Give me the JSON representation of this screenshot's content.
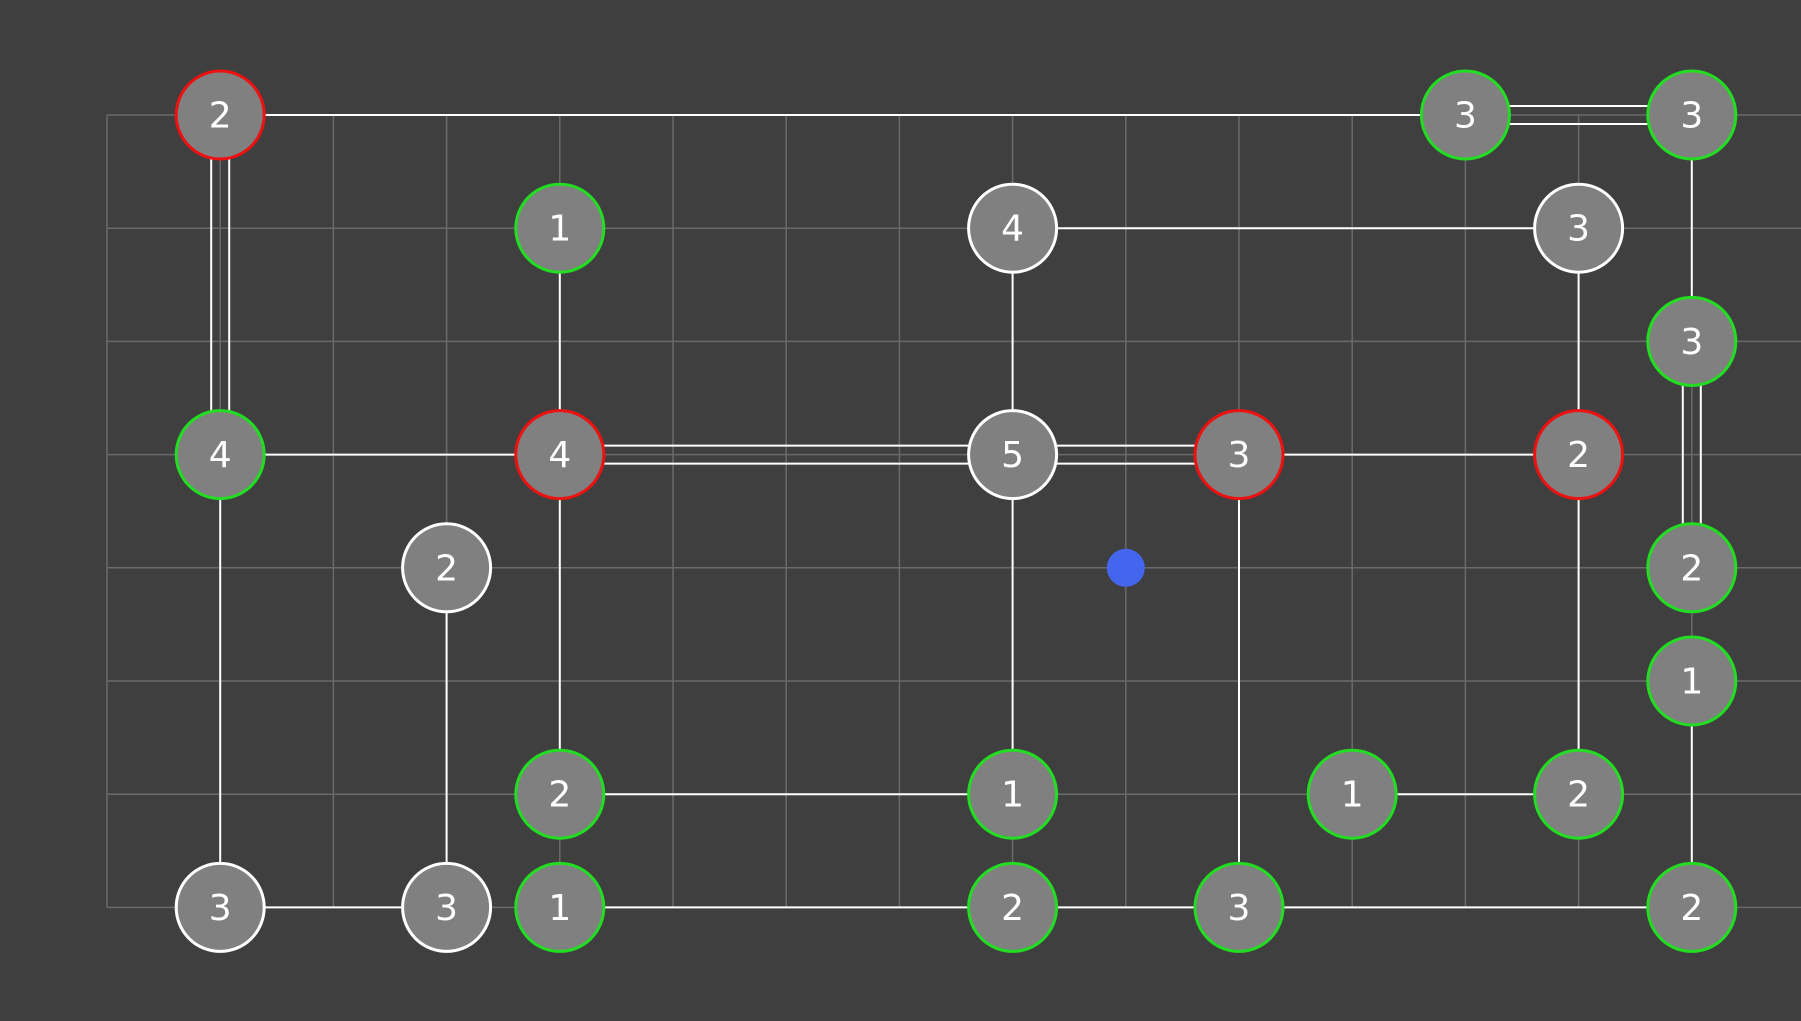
{
  "puzzle": {
    "grid": {
      "cols": 15,
      "rows": 8
    },
    "colors": {
      "background": "#3f3f3f",
      "grid": "#6a6a6a",
      "node_fill": "#808080",
      "bridge": "#ffffff",
      "complete": "#22dd22",
      "error": "#ee1111",
      "incomplete": "#ffffff",
      "cursor": "#4466ee"
    },
    "cursor": {
      "col": 9,
      "row": 4
    },
    "nodes": [
      {
        "id": "n1",
        "col": 1,
        "row": 0,
        "label": "2",
        "state": "error"
      },
      {
        "id": "n2",
        "col": 12,
        "row": 0,
        "label": "3",
        "state": "complete"
      },
      {
        "id": "n3",
        "col": 14,
        "row": 0,
        "label": "3",
        "state": "complete"
      },
      {
        "id": "n4",
        "col": 4,
        "row": 1,
        "label": "1",
        "state": "complete"
      },
      {
        "id": "n5",
        "col": 8,
        "row": 1,
        "label": "4",
        "state": "incomplete"
      },
      {
        "id": "n6",
        "col": 13,
        "row": 1,
        "label": "3",
        "state": "incomplete"
      },
      {
        "id": "n7",
        "col": 14,
        "row": 2,
        "label": "3",
        "state": "complete"
      },
      {
        "id": "n8",
        "col": 1,
        "row": 3,
        "label": "4",
        "state": "complete"
      },
      {
        "id": "n9",
        "col": 4,
        "row": 3,
        "label": "4",
        "state": "error"
      },
      {
        "id": "n10",
        "col": 8,
        "row": 3,
        "label": "5",
        "state": "incomplete"
      },
      {
        "id": "n11",
        "col": 10,
        "row": 3,
        "label": "3",
        "state": "error"
      },
      {
        "id": "n12",
        "col": 13,
        "row": 3,
        "label": "2",
        "state": "error"
      },
      {
        "id": "n13",
        "col": 3,
        "row": 4,
        "label": "2",
        "state": "incomplete"
      },
      {
        "id": "n14",
        "col": 14,
        "row": 4,
        "label": "2",
        "state": "complete"
      },
      {
        "id": "n15",
        "col": 14,
        "row": 5,
        "label": "1",
        "state": "complete"
      },
      {
        "id": "n16",
        "col": 4,
        "row": 6,
        "label": "2",
        "state": "complete"
      },
      {
        "id": "n17",
        "col": 8,
        "row": 6,
        "label": "1",
        "state": "complete"
      },
      {
        "id": "n18",
        "col": 11,
        "row": 6,
        "label": "1",
        "state": "complete"
      },
      {
        "id": "n19",
        "col": 13,
        "row": 6,
        "label": "2",
        "state": "complete"
      },
      {
        "id": "n20",
        "col": 1,
        "row": 7,
        "label": "3",
        "state": "incomplete"
      },
      {
        "id": "n21",
        "col": 3,
        "row": 7,
        "label": "3",
        "state": "incomplete"
      },
      {
        "id": "n22",
        "col": 4,
        "row": 7,
        "label": "1",
        "state": "complete"
      },
      {
        "id": "n23",
        "col": 8,
        "row": 7,
        "label": "2",
        "state": "complete"
      },
      {
        "id": "n24",
        "col": 10,
        "row": 7,
        "label": "3",
        "state": "complete"
      },
      {
        "id": "n25",
        "col": 14,
        "row": 7,
        "label": "2",
        "state": "complete"
      }
    ],
    "bridges": [
      {
        "from": "n1",
        "to": "n2",
        "count": 1
      },
      {
        "from": "n2",
        "to": "n3",
        "count": 2
      },
      {
        "from": "n1",
        "to": "n8",
        "count": 2
      },
      {
        "from": "n3",
        "to": "n7",
        "count": 1
      },
      {
        "from": "n4",
        "to": "n9",
        "count": 1
      },
      {
        "from": "n5",
        "to": "n6",
        "count": 1
      },
      {
        "from": "n5",
        "to": "n10",
        "count": 1
      },
      {
        "from": "n6",
        "to": "n12",
        "count": 1
      },
      {
        "from": "n7",
        "to": "n14",
        "count": 2
      },
      {
        "from": "n8",
        "to": "n9",
        "count": 1
      },
      {
        "from": "n8",
        "to": "n20",
        "count": 1
      },
      {
        "from": "n9",
        "to": "n10",
        "count": 2
      },
      {
        "from": "n9",
        "to": "n16",
        "count": 1
      },
      {
        "from": "n10",
        "to": "n11",
        "count": 2
      },
      {
        "from": "n10",
        "to": "n17",
        "count": 1
      },
      {
        "from": "n11",
        "to": "n12",
        "count": 1
      },
      {
        "from": "n11",
        "to": "n24",
        "count": 1
      },
      {
        "from": "n12",
        "to": "n19",
        "count": 1
      },
      {
        "from": "n13",
        "to": "n21",
        "count": 1
      },
      {
        "from": "n15",
        "to": "n25",
        "count": 1
      },
      {
        "from": "n16",
        "to": "n17",
        "count": 1
      },
      {
        "from": "n18",
        "to": "n19",
        "count": 1
      },
      {
        "from": "n20",
        "to": "n21",
        "count": 1
      },
      {
        "from": "n22",
        "to": "n23",
        "count": 1
      },
      {
        "from": "n23",
        "to": "n24",
        "count": 1
      },
      {
        "from": "n24",
        "to": "n25",
        "count": 1
      }
    ]
  }
}
